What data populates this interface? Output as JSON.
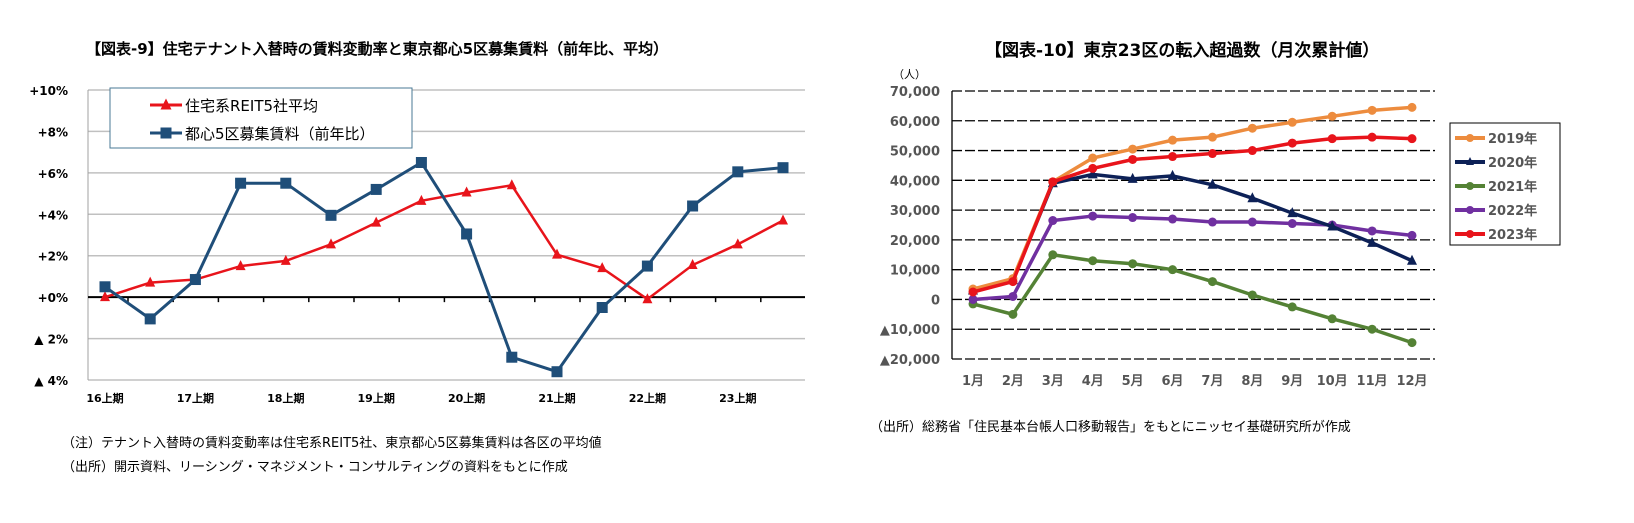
{
  "left": {
    "title": "【図表-9】住宅テナント入替時の賃料変動率と東京都心5区募集賃料（前年比、平均）",
    "note": "（注）テナント入替時の賃料変動率は住宅系REIT5社、東京都心5区募集賃料は各区の平均値",
    "source": "（出所）開示資料、リーシング・マネジメント・コンサルティングの資料をもとに作成"
  },
  "right": {
    "title": "【図表-10】東京23区の転入超過数（月次累計値）",
    "unit": "（人）",
    "source": "（出所）総務省「住民基本台帳人口移動報告」をもとにニッセイ基礎研究所が作成"
  },
  "chart_data": [
    {
      "type": "line",
      "title": "【図表-9】住宅テナント入替時の賃料変動率と東京都心5区募集賃料（前年比、平均）",
      "xlabel": "",
      "ylabel": "",
      "ylim": [
        -4,
        10
      ],
      "yticks": [
        "+10%",
        "+8%",
        "+6%",
        "+4%",
        "+2%",
        "+0%",
        "▲ 2%",
        "▲ 4%"
      ],
      "x": [
        "16上期",
        "16下期",
        "17上期",
        "17下期",
        "18上期",
        "18下期",
        "19上期",
        "19下期",
        "20上期",
        "20下期",
        "21上期",
        "21下期",
        "22上期",
        "22下期",
        "23上期",
        "23下期"
      ],
      "xtick_labels": [
        "16上期",
        "17上期",
        "18上期",
        "19上期",
        "20上期",
        "21上期",
        "22上期",
        "23上期"
      ],
      "grid": true,
      "legend_position": "top-left",
      "series": [
        {
          "name": "住宅系REIT5社平均",
          "color": "#e8141b",
          "marker": "triangle",
          "values": [
            0.0,
            0.7,
            0.85,
            1.5,
            1.75,
            2.55,
            3.6,
            4.65,
            5.05,
            5.4,
            2.05,
            1.4,
            -0.1,
            1.55,
            2.55,
            3.7
          ]
        },
        {
          "name": "都心5区募集賃料（前年比）",
          "color": "#1f4e79",
          "marker": "square",
          "values": [
            0.5,
            -1.05,
            0.85,
            5.5,
            5.5,
            3.95,
            5.2,
            6.5,
            3.05,
            -2.9,
            -3.6,
            -0.5,
            1.5,
            4.4,
            6.05,
            6.25
          ]
        }
      ]
    },
    {
      "type": "line",
      "title": "【図表-10】東京23区の転入超過数（月次累計値）",
      "xlabel": "",
      "ylabel": "（人）",
      "ylim": [
        -20000,
        70000
      ],
      "yticks": [
        "70,000",
        "60,000",
        "50,000",
        "40,000",
        "30,000",
        "20,000",
        "10,000",
        "0",
        "▲10,000",
        "▲20,000"
      ],
      "x": [
        "1月",
        "2月",
        "3月",
        "4月",
        "5月",
        "6月",
        "7月",
        "8月",
        "9月",
        "10月",
        "11月",
        "12月"
      ],
      "grid": true,
      "legend_position": "right",
      "series": [
        {
          "name": "2019年",
          "color": "#ed8c3e",
          "marker": "circle",
          "values": [
            3500,
            7000,
            39500,
            47500,
            50500,
            53500,
            54500,
            57500,
            59500,
            61500,
            63500,
            64500
          ]
        },
        {
          "name": "2020年",
          "color": "#0d2157",
          "marker": "triangle",
          "values": [
            3000,
            6500,
            39000,
            42000,
            40500,
            41500,
            38500,
            34000,
            29000,
            24500,
            19000,
            13000
          ]
        },
        {
          "name": "2021年",
          "color": "#548235",
          "marker": "circle",
          "values": [
            -1500,
            -5000,
            15000,
            13000,
            12000,
            10000,
            6000,
            1500,
            -2500,
            -6500,
            -10000,
            -14500
          ]
        },
        {
          "name": "2022年",
          "color": "#7030a0",
          "marker": "circle",
          "values": [
            0,
            1000,
            26500,
            28000,
            27500,
            27000,
            26000,
            26000,
            25500,
            25000,
            23000,
            21500
          ]
        },
        {
          "name": "2023年",
          "color": "#e8141b",
          "marker": "circle",
          "values": [
            2500,
            6000,
            39500,
            44000,
            47000,
            48000,
            49000,
            50000,
            52500,
            54000,
            54500,
            54000
          ]
        }
      ]
    }
  ]
}
